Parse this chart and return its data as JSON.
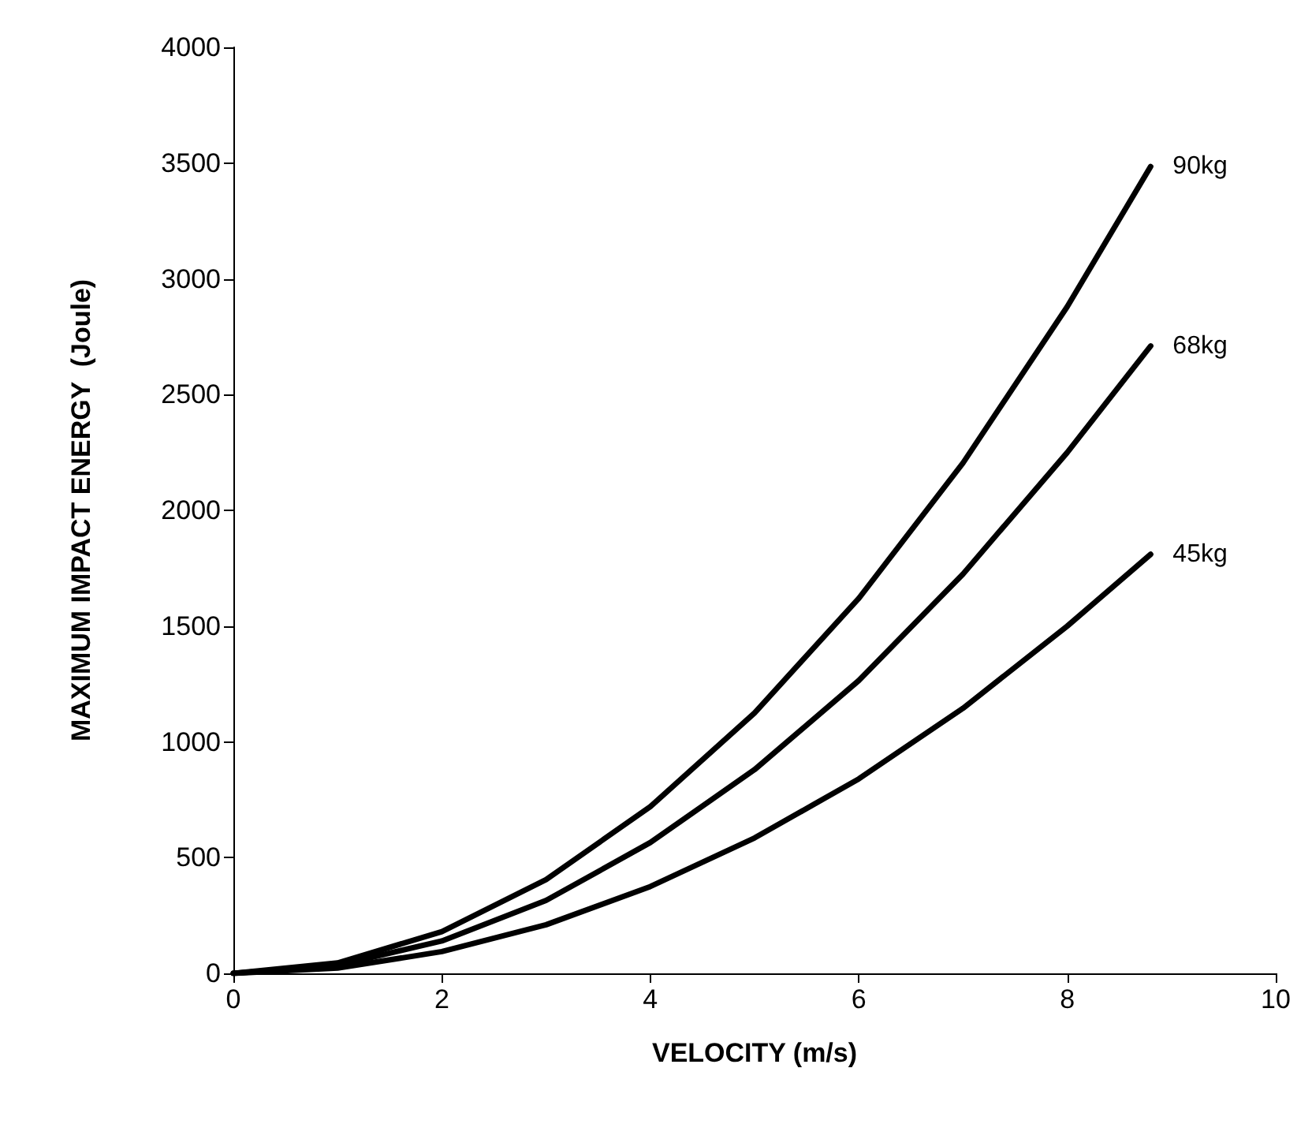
{
  "chart_data": {
    "type": "line",
    "xlabel": "VELOCITY (m/s)",
    "ylabel": "MAXIMUM IMPACT ENERGY  (Joule)",
    "x": [
      0,
      1,
      2,
      3,
      4,
      5,
      6,
      7,
      8,
      8.8
    ],
    "series": [
      {
        "name": "90kg",
        "color": "#000000",
        "values": [
          0,
          45,
          180,
          405,
          720,
          1125,
          1620,
          2205,
          2880,
          3485
        ]
      },
      {
        "name": "68kg",
        "color": "#000000",
        "values": [
          0,
          35,
          140,
          315,
          565,
          880,
          1265,
          1725,
          2250,
          2710
        ]
      },
      {
        "name": "45kg",
        "color": "#000000",
        "values": [
          0,
          23,
          94,
          210,
          375,
          585,
          840,
          1145,
          1500,
          1810
        ]
      }
    ],
    "xlim": [
      0,
      10
    ],
    "xticks": [
      0,
      2,
      4,
      6,
      8,
      10
    ],
    "ylim": [
      0,
      4000
    ],
    "yticks": [
      0,
      500,
      1000,
      1500,
      2000,
      2500,
      3000,
      3500,
      4000
    ],
    "grid": false,
    "legend": false,
    "marker": "none",
    "line_style": "solid"
  }
}
